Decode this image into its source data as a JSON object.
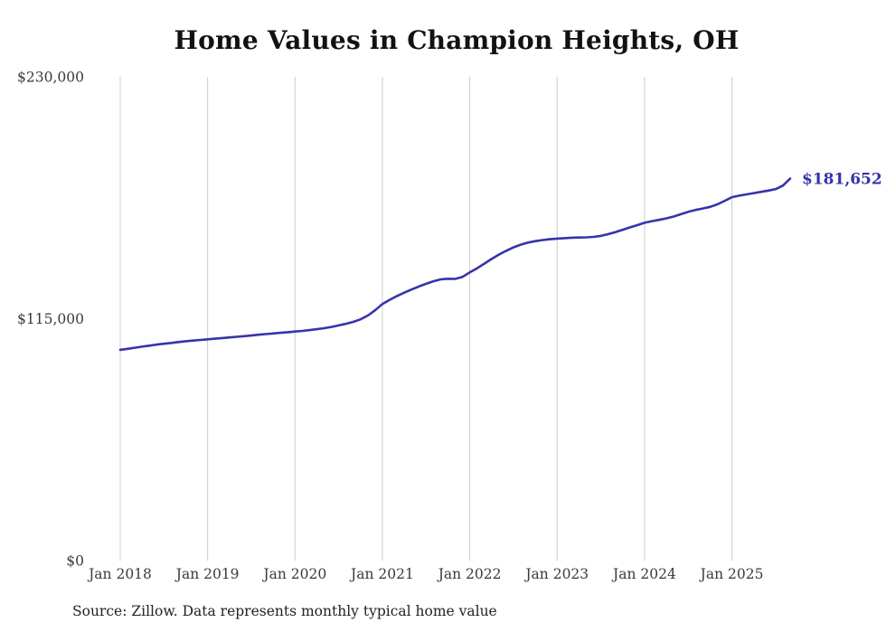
{
  "title": "Home Values in Champion Heights, OH",
  "source_note": "Source: Zillow. Data represents monthly typical home value",
  "colors": {
    "line": "#3733aa",
    "gridline": "#cccccc",
    "axis_text": "#3a3a3a",
    "title_text": "#121212"
  },
  "chart_data": {
    "type": "line",
    "title": "Home Values in Champion Heights, OH",
    "ylabel": "",
    "xlabel": "",
    "ylim": [
      0,
      230000
    ],
    "grid": "vertical-only",
    "legend": "none",
    "last_value_label": "$181,652",
    "y_ticks": [
      {
        "label": "$0",
        "value": 0
      },
      {
        "label": "$115,000",
        "value": 115000
      },
      {
        "label": "$230,000",
        "value": 230000
      }
    ],
    "x_ticks": [
      "Jan 2018",
      "Jan 2019",
      "Jan 2020",
      "Jan 2021",
      "Jan 2022",
      "Jan 2023",
      "Jan 2024",
      "Jan 2025"
    ],
    "x": [
      "2018-01",
      "2018-02",
      "2018-03",
      "2018-04",
      "2018-05",
      "2018-06",
      "2018-07",
      "2018-08",
      "2018-09",
      "2018-10",
      "2018-11",
      "2018-12",
      "2019-01",
      "2019-02",
      "2019-03",
      "2019-04",
      "2019-05",
      "2019-06",
      "2019-07",
      "2019-08",
      "2019-09",
      "2019-10",
      "2019-11",
      "2019-12",
      "2020-01",
      "2020-02",
      "2020-03",
      "2020-04",
      "2020-05",
      "2020-06",
      "2020-07",
      "2020-08",
      "2020-09",
      "2020-10",
      "2020-11",
      "2020-12",
      "2021-01",
      "2021-02",
      "2021-03",
      "2021-04",
      "2021-05",
      "2021-06",
      "2021-07",
      "2021-08",
      "2021-09",
      "2021-10",
      "2021-11",
      "2021-12",
      "2022-01",
      "2022-02",
      "2022-03",
      "2022-04",
      "2022-05",
      "2022-06",
      "2022-07",
      "2022-08",
      "2022-09",
      "2022-10",
      "2022-11",
      "2022-12",
      "2023-01",
      "2023-02",
      "2023-03",
      "2023-04",
      "2023-05",
      "2023-06",
      "2023-07",
      "2023-08",
      "2023-09",
      "2023-10",
      "2023-11",
      "2023-12",
      "2024-01",
      "2024-02",
      "2024-03",
      "2024-04",
      "2024-05",
      "2024-06",
      "2024-07",
      "2024-08",
      "2024-09",
      "2024-10",
      "2024-11",
      "2024-12",
      "2025-01",
      "2025-02",
      "2025-03",
      "2025-04",
      "2025-05",
      "2025-06",
      "2025-07",
      "2025-08",
      "2025-09"
    ],
    "values": [
      100200,
      100700,
      101200,
      101700,
      102200,
      102700,
      103100,
      103500,
      103900,
      104300,
      104600,
      104900,
      105200,
      105500,
      105800,
      106100,
      106400,
      106700,
      107000,
      107400,
      107700,
      108000,
      108300,
      108600,
      108900,
      109200,
      109600,
      110000,
      110500,
      111100,
      111800,
      112600,
      113500,
      114700,
      116500,
      119000,
      122000,
      124000,
      125800,
      127400,
      128900,
      130300,
      131600,
      132800,
      133700,
      134000,
      133900,
      134900,
      137000,
      139000,
      141200,
      143400,
      145500,
      147300,
      148900,
      150200,
      151200,
      151900,
      152400,
      152800,
      153100,
      153300,
      153500,
      153600,
      153700,
      153900,
      154400,
      155200,
      156200,
      157300,
      158400,
      159500,
      160600,
      161400,
      162000,
      162700,
      163600,
      164700,
      165800,
      166700,
      167400,
      168200,
      169400,
      171000,
      172800,
      173500,
      174100,
      174700,
      175300,
      175900,
      176600,
      178300,
      181652
    ]
  }
}
